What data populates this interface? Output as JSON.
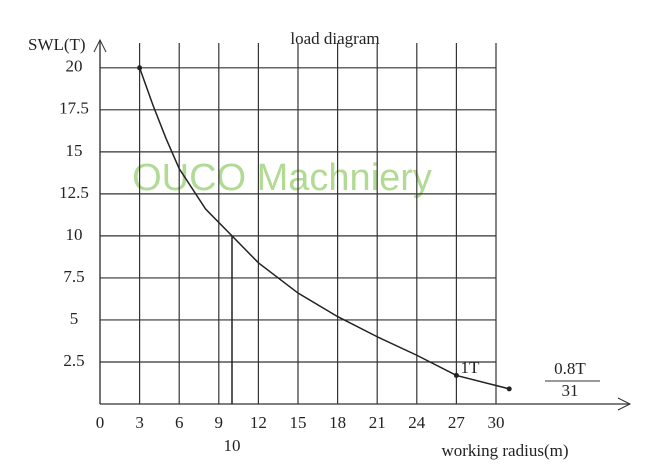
{
  "chart_data": {
    "type": "line",
    "title": "load diagram",
    "y_label": "SWL(T)",
    "x_label": "working radius(m)",
    "watermark": "OUCO Machniery",
    "x": [
      3,
      4,
      5,
      6,
      8,
      10,
      12,
      15,
      18,
      21,
      24,
      27,
      31
    ],
    "series": [
      {
        "name": "SWL",
        "color": "#222222",
        "values": [
          20,
          17.8,
          15.8,
          14,
          11.6,
          10,
          8.4,
          6.6,
          5.2,
          4,
          2.9,
          1.7,
          0.9
        ]
      }
    ],
    "xlim": [
      0,
      30
    ],
    "xticks": [
      0,
      3,
      6,
      9,
      12,
      15,
      18,
      21,
      24,
      27,
      30
    ],
    "ylim": [
      0,
      21
    ],
    "yticks": [
      2.5,
      5,
      7.5,
      10,
      12.5,
      15,
      17.5,
      20
    ],
    "reference_x": 10,
    "annotations": [
      "1T",
      "0.8T",
      "31"
    ],
    "grid": true
  }
}
